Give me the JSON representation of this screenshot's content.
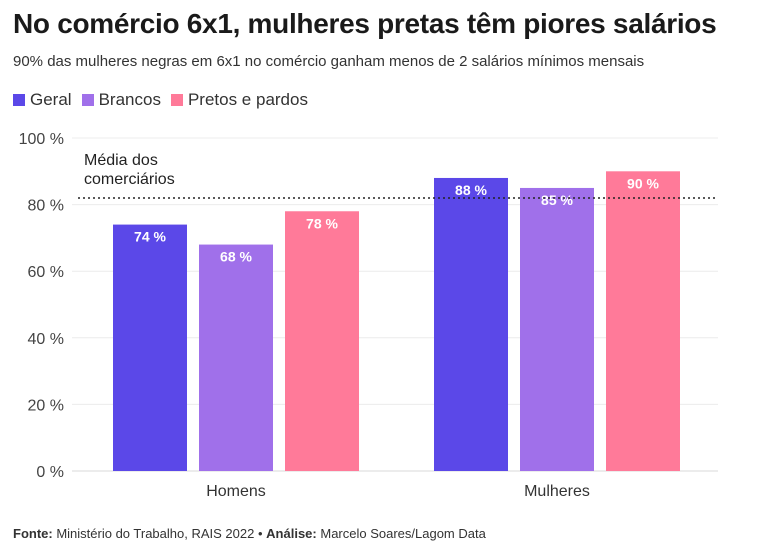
{
  "header": {
    "title": "No comércio 6x1, mulheres pretas têm piores salários",
    "subtitle": "90% das mulheres negras em 6x1 no comércio ganham menos de 2 salários mínimos mensais"
  },
  "footer": {
    "source_label": "Fonte:",
    "source_text": "Ministério do Trabalho, RAIS 2022",
    "separator": "•",
    "analysis_label": "Análise:",
    "analysis_text": "Marcelo Soares/Lagom Data"
  },
  "chart_data": {
    "type": "bar",
    "categories": [
      "Homens",
      "Mulheres"
    ],
    "series": [
      {
        "name": "Geral",
        "color": "#5b48e8",
        "values": [
          74,
          88
        ],
        "labels": [
          "74 %",
          "88 %"
        ]
      },
      {
        "name": "Brancos",
        "color": "#a070ea",
        "values": [
          68,
          85
        ],
        "labels": [
          "68 %",
          "85 %"
        ]
      },
      {
        "name": "Pretos e pardos",
        "color": "#ff7a99",
        "values": [
          78,
          90
        ],
        "labels": [
          "78 %",
          "90 %"
        ]
      }
    ],
    "ylim": [
      0,
      100
    ],
    "yticks": [
      0,
      20,
      40,
      60,
      80,
      100
    ],
    "ytick_labels": [
      "0 %",
      "20 %",
      "40 %",
      "60 %",
      "80 %",
      "100 %"
    ],
    "reference_line": {
      "value": 82,
      "label_lines": [
        "Média dos",
        "comerciários"
      ],
      "style": "dotted"
    },
    "grid": true,
    "legend_position": "top-left"
  }
}
